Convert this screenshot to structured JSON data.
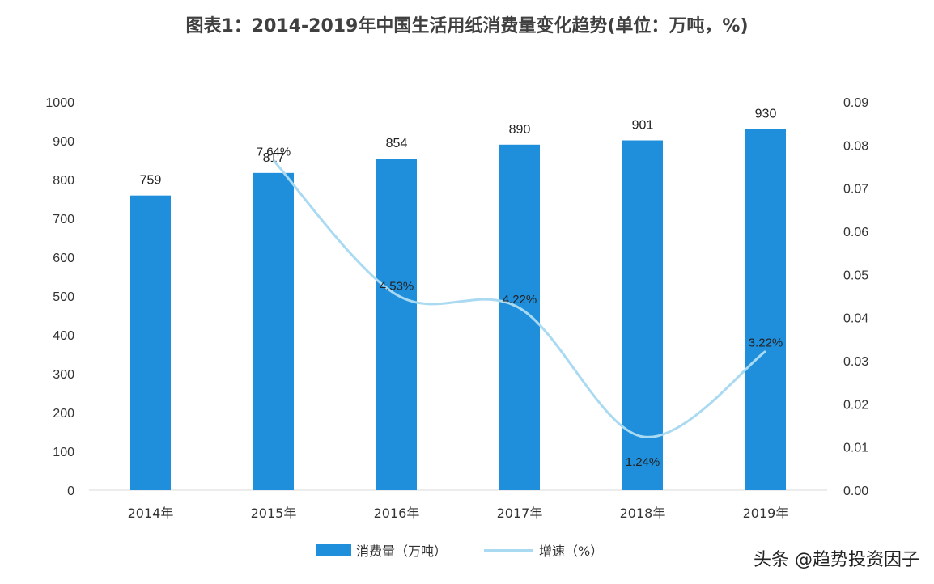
{
  "title": "图表1：2014-2019年中国生活用纸消费量变化趋势(单位：万吨，%)",
  "legend": {
    "bar_label": "消费量（万吨）",
    "line_label": "增速（%）"
  },
  "watermark": "头条 @趋势投资因子",
  "colors": {
    "bar": "#1f8fdc",
    "line": "#a9daf2"
  },
  "chart_data": {
    "type": "bar",
    "categories": [
      "2014年",
      "2015年",
      "2016年",
      "2017年",
      "2018年",
      "2019年"
    ],
    "series": [
      {
        "name": "消费量（万吨）",
        "type": "bar",
        "axis": "left",
        "values": [
          759,
          817,
          854,
          890,
          901,
          930
        ],
        "labels": [
          "759",
          "817",
          "854",
          "890",
          "901",
          "930"
        ]
      },
      {
        "name": "增速（%）",
        "type": "line",
        "axis": "right",
        "values": [
          null,
          0.0764,
          0.0453,
          0.0422,
          0.0124,
          0.0322
        ],
        "labels": [
          "",
          "7.64%",
          "4.53%",
          "4.22%",
          "1.24%",
          "3.22%"
        ]
      }
    ],
    "y_left": {
      "min": 0,
      "max": 1000,
      "ticks": [
        "0",
        "100",
        "200",
        "300",
        "400",
        "500",
        "600",
        "700",
        "800",
        "900",
        "1000"
      ]
    },
    "y_right": {
      "min": 0,
      "max": 0.09,
      "ticks": [
        "0.00",
        "0.01",
        "0.02",
        "0.03",
        "0.04",
        "0.05",
        "0.06",
        "0.07",
        "0.08",
        "0.09"
      ]
    },
    "grid": false,
    "legend_position": "bottom"
  }
}
